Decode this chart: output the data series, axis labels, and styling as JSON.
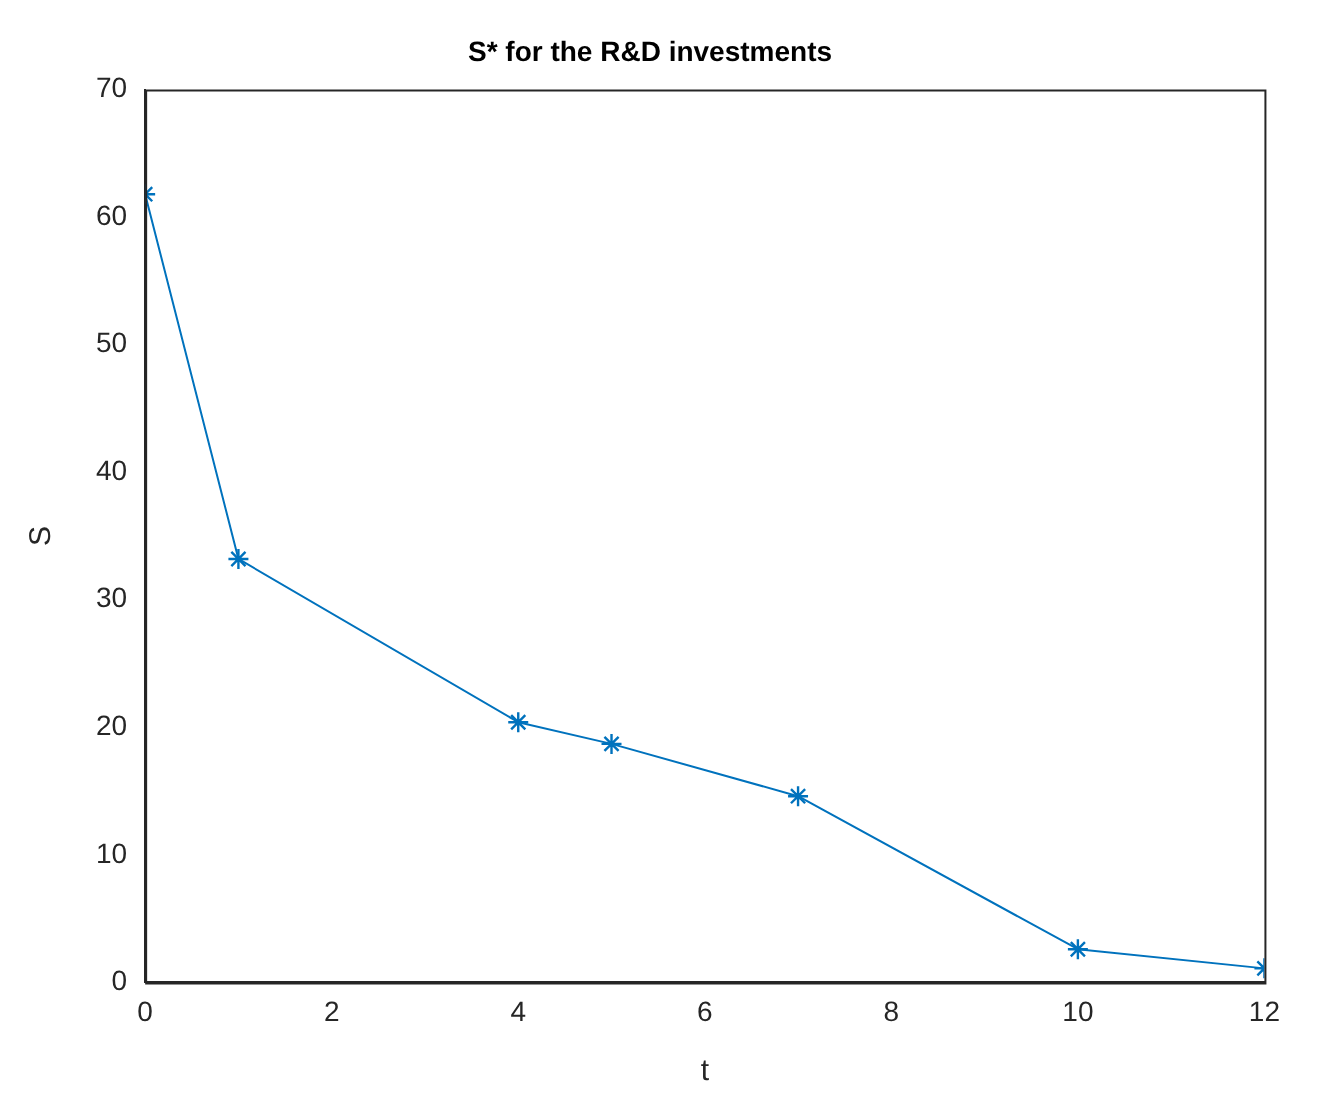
{
  "chart_data": {
    "type": "line",
    "title": "S* for the R&D investments",
    "xlabel": "t",
    "ylabel": "S",
    "x": [
      0,
      1,
      4,
      5,
      7,
      10,
      12
    ],
    "series": [
      {
        "color": "#0072bd",
        "values": [
          61.8,
          33.2,
          20.4,
          18.7,
          14.6,
          2.6,
          1.1
        ]
      }
    ],
    "xlim": [
      0,
      12
    ],
    "xticks": [
      0,
      2,
      4,
      6,
      8,
      10,
      12
    ],
    "ylim": [
      0,
      70
    ],
    "yticks": [
      0,
      10,
      20,
      30,
      40,
      50,
      60,
      70
    ],
    "grid": false,
    "legend": false,
    "marker": "cross",
    "line_style": "solid"
  }
}
